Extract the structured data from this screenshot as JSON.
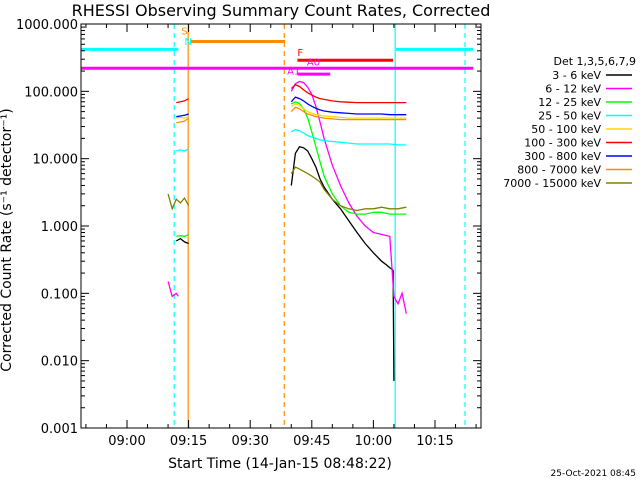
{
  "chart_data": {
    "type": "line",
    "title": "RHESSI Observing Summary Count Rates, Corrected",
    "xlabel": "Start Time (14-Jan-15 08:48:22)",
    "ylabel": "Corrected Count Rate (s⁻¹ detector⁻¹)",
    "yscale": "log",
    "ylim": [
      0.001,
      1000
    ],
    "xlim_minutes": [
      8.8,
      106.2
    ],
    "x_ticks": [
      {
        "m": 20,
        "label": "09:00"
      },
      {
        "m": 35,
        "label": "09:15"
      },
      {
        "m": 50,
        "label": "09:30"
      },
      {
        "m": 65,
        "label": "09:45"
      },
      {
        "m": 80,
        "label": "10:00"
      },
      {
        "m": 95,
        "label": "10:15"
      }
    ],
    "y_ticks": [
      {
        "v": 0.001,
        "label": "0.001"
      },
      {
        "v": 0.01,
        "label": "0.010"
      },
      {
        "v": 0.1,
        "label": "0.100"
      },
      {
        "v": 1,
        "label": "1.000"
      },
      {
        "v": 10,
        "label": "10.000"
      },
      {
        "v": 100,
        "label": "100.000"
      },
      {
        "v": 1000,
        "label": "1000.000"
      }
    ],
    "legend": {
      "title": "Det 1,3,5,6,7,9",
      "position": "right"
    },
    "series": [
      {
        "name": "3 - 6 keV",
        "color": "#000000",
        "x": [
          32,
          33,
          34,
          35,
          60,
          61,
          62,
          63,
          64,
          65,
          66,
          67,
          68,
          70,
          72,
          74,
          76,
          78,
          80,
          82,
          83,
          84,
          84.8,
          85
        ],
        "y": [
          0.6,
          0.65,
          0.58,
          0.55,
          4,
          12,
          15,
          14.5,
          13,
          10,
          7.5,
          5,
          3.8,
          2.5,
          1.8,
          1.2,
          0.8,
          0.55,
          0.4,
          0.3,
          0.27,
          0.24,
          0.22,
          0.005
        ]
      },
      {
        "name": "6 - 12 keV",
        "color": "#ff00ff",
        "x": [
          30,
          31,
          32,
          32.5,
          60,
          61,
          62,
          63,
          64,
          65,
          66,
          67,
          68,
          70,
          72,
          74,
          76,
          78,
          80,
          82,
          84,
          85,
          86,
          87,
          88
        ],
        "y": [
          0.15,
          0.09,
          0.1,
          0.09,
          100,
          130,
          140,
          135,
          115,
          90,
          60,
          35,
          20,
          8,
          4,
          2.2,
          1.4,
          1,
          0.8,
          0.75,
          0.7,
          0.09,
          0.07,
          0.1,
          0.05
        ]
      },
      {
        "name": "12 - 25 keV",
        "color": "#00ff00",
        "x": [
          32,
          33,
          34,
          35,
          60,
          61,
          62,
          63,
          64,
          65,
          66,
          67,
          68,
          70,
          72,
          74,
          76,
          78,
          80,
          82,
          84,
          86,
          88
        ],
        "y": [
          0.7,
          0.72,
          0.7,
          0.75,
          65,
          70,
          66,
          55,
          40,
          25,
          15,
          9,
          5.5,
          3,
          2,
          1.6,
          1.5,
          1.5,
          1.6,
          1.6,
          1.5,
          1.5,
          1.5
        ]
      },
      {
        "name": "25 - 50 keV",
        "color": "#00ffff",
        "x": [
          32,
          33,
          34,
          35,
          60,
          61,
          62,
          63,
          64,
          65,
          66,
          67,
          68,
          70,
          72,
          74,
          76,
          78,
          80,
          82,
          84,
          86,
          88
        ],
        "y": [
          13,
          13.5,
          13,
          14,
          25,
          27,
          26,
          24,
          22,
          21,
          20,
          19,
          18.5,
          18,
          17.5,
          17,
          16.5,
          16.5,
          16.5,
          16.5,
          16.5,
          16,
          16
        ]
      },
      {
        "name": "50 - 100 keV",
        "color": "#ffd700",
        "x": [
          32,
          33,
          34,
          35,
          60,
          61,
          62,
          63,
          64,
          65,
          66,
          67,
          68,
          70,
          72,
          74,
          76,
          78,
          80,
          82,
          84,
          86,
          88
        ],
        "y": [
          40,
          41,
          40,
          42,
          60,
          65,
          62,
          55,
          50,
          47,
          45,
          44,
          43,
          42,
          41,
          40,
          40,
          40,
          40,
          40,
          40,
          40,
          40
        ]
      },
      {
        "name": "100 - 300 keV",
        "color": "#ff0000",
        "x": [
          32,
          33,
          34,
          35,
          60,
          61,
          62,
          63,
          64,
          65,
          66,
          67,
          68,
          70,
          72,
          74,
          76,
          78,
          80,
          82,
          84,
          86,
          88
        ],
        "y": [
          68,
          70,
          72,
          78,
          110,
          125,
          118,
          105,
          95,
          88,
          82,
          78,
          76,
          72,
          70,
          69,
          68,
          68,
          68,
          68,
          68,
          68,
          68
        ]
      },
      {
        "name": "300 - 800 keV",
        "color": "#0000ff",
        "x": [
          32,
          33,
          34,
          35,
          60,
          61,
          62,
          63,
          64,
          65,
          66,
          67,
          68,
          70,
          72,
          74,
          76,
          78,
          80,
          82,
          84,
          86,
          88
        ],
        "y": [
          42,
          43,
          44,
          46,
          70,
          82,
          78,
          72,
          65,
          60,
          56,
          53,
          51,
          49,
          48,
          47,
          46,
          46,
          46,
          46,
          45,
          45,
          45
        ]
      },
      {
        "name": "800 - 7000 keV",
        "color": "#ff8c00",
        "x": [
          32,
          33,
          34,
          35,
          60,
          61,
          62,
          63,
          64,
          65,
          66,
          67,
          68,
          70,
          72,
          74,
          76,
          78,
          80,
          82,
          84,
          86,
          88
        ],
        "y": [
          34,
          35,
          36,
          40,
          50,
          58,
          55,
          50,
          46,
          44,
          42,
          41,
          40,
          39,
          38,
          38,
          38,
          38,
          38,
          38,
          38,
          38,
          38
        ]
      },
      {
        "name": "7000 - 15000 keV",
        "color": "#808000",
        "x": [
          30,
          31,
          32,
          33,
          34,
          35,
          60,
          61,
          62,
          63,
          64,
          65,
          66,
          67,
          68,
          70,
          72,
          74,
          76,
          78,
          80,
          82,
          84,
          86,
          88
        ],
        "y": [
          3,
          1.8,
          2.5,
          2.2,
          2.6,
          2,
          6,
          7.5,
          7,
          6.5,
          6,
          5.5,
          5,
          4.5,
          3.5,
          2.5,
          2,
          1.8,
          1.7,
          1.8,
          1.8,
          1.9,
          1.8,
          1.8,
          1.9
        ]
      }
    ],
    "vertical_lines": [
      {
        "x": 31.5,
        "color": "#00ffff",
        "style": "dashed"
      },
      {
        "x": 34.9,
        "color": "#ff8c00",
        "style": "solid"
      },
      {
        "x": 58.3,
        "color": "#ff8c00",
        "style": "dashed"
      },
      {
        "x": 85.3,
        "color": "#00ffff",
        "style": "solid"
      },
      {
        "x": 102.3,
        "color": "#00ffff",
        "style": "dashed"
      }
    ],
    "flag_bars": [
      {
        "color": "#00ffff",
        "y": 420,
        "x1": 8.8,
        "x2": 32.5
      },
      {
        "color": "#00ffff",
        "y": 420,
        "x1": 85.5,
        "x2": 104.3
      },
      {
        "color": "#ff8c00",
        "y": 550,
        "x1": 35.5,
        "x2": 58.5
      },
      {
        "color": "#ff0000",
        "y": 290,
        "x1": 61.5,
        "x2": 84.8
      },
      {
        "color": "#ff00ff",
        "y": 220,
        "x1": 8.8,
        "x2": 104.3
      },
      {
        "color": "#ff00ff",
        "y": 180,
        "x1": 61.5,
        "x2": 69.5
      }
    ],
    "flag_labels": [
      {
        "text": "S",
        "color": "#ff8c00",
        "x": 33.2,
        "y": 700
      },
      {
        "text": "N",
        "color": "#00ffff",
        "x": 34.0,
        "y": 490
      },
      {
        "text": "F",
        "color": "#ff0000",
        "x": 61.5,
        "y": 335
      },
      {
        "text": "A0",
        "color": "#ff00ff",
        "x": 63.8,
        "y": 240
      },
      {
        "text": "A1",
        "color": "#ff00ff",
        "x": 59.0,
        "y": 178
      }
    ]
  },
  "footer": {
    "date": "25-Oct-2021 08:45"
  }
}
